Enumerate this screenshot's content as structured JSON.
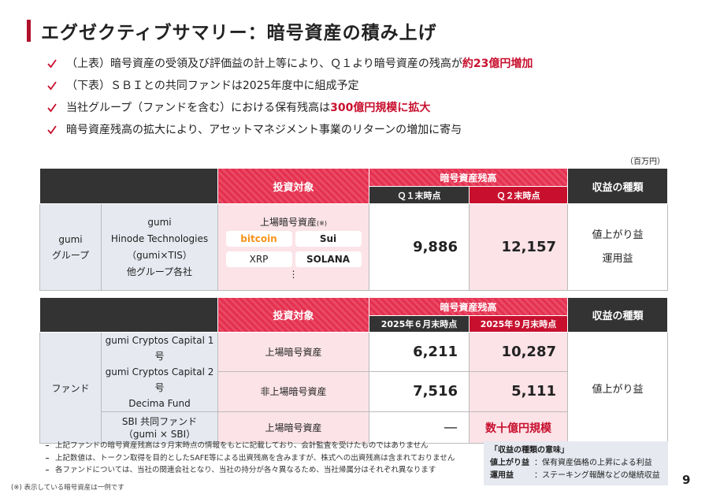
{
  "header": {
    "title": "エグゼクティブサマリー：暗号資産の積み上げ"
  },
  "bullets": [
    {
      "text": "（上表）暗号資産の受領及び評価益の計上等により、Ｑ１より暗号資産の残高が",
      "emphasis": "約23億円増加"
    },
    {
      "text": "（下表）ＳＢＩとの共同ファンドは2025年度中に組成予定"
    },
    {
      "text": "当社グループ（ファンドを含む）における保有残高は",
      "emphasis": "300億円規模に拡大"
    },
    {
      "text": "暗号資産残高の拡大により、アセットマネジメント事業のリターンの増加に寄与"
    }
  ],
  "unit": "（百万円）",
  "table1": {
    "header": {
      "target": "投資対象",
      "balance": "暗号資産残高",
      "col1": "Ｑ１末時点",
      "col2": "Ｑ２末時点",
      "revenue": "収益の種類"
    },
    "row": {
      "group": [
        "gumi",
        "グループ"
      ],
      "entities": [
        "gumi",
        "Hinode Technologies",
        "（gumi×TIS）",
        "他グループ各社"
      ],
      "asset": "上場暗号資産",
      "asset_note": "(※)",
      "logos": [
        "bitcoin",
        "Sui",
        "XRP",
        "SOLANA"
      ],
      "more": "⋮",
      "col1": "9,886",
      "col2": "12,157",
      "revenue": [
        "値上がり益",
        "運用益"
      ]
    }
  },
  "table2": {
    "header": {
      "target": "投資対象",
      "balance": "暗号資産残高",
      "col1": "2025年６月末時点",
      "col2": "2025年９月末時点",
      "revenue": "収益の種類"
    },
    "group": "ファンド",
    "entities": [
      "gumi Cryptos Capital 1号",
      "gumi Cryptos Capital 2号",
      "Decima Fund"
    ],
    "rows": [
      {
        "asset": "上場暗号資産",
        "col1": "6,211",
        "col2": "10,287"
      },
      {
        "asset": "非上場暗号資産",
        "col1": "7,516",
        "col2": "5,111"
      }
    ],
    "sbi": {
      "entity": [
        "SBI 共同ファンド",
        "（gumi × SBI）"
      ],
      "asset": "上場暗号資産",
      "col1": "—",
      "col2": "数十億円規模"
    },
    "revenue": "値上がり益"
  },
  "notes": [
    "上記ファンドの暗号資産残高は９月末時点の情報をもとに記載しており、会計監査を受けたものではありません",
    "上記数値は、トークン取得を目的としたSAFE等による出資残高を含みますが、株式への出資残高は含まれておりません",
    "各ファンドについては、当社の関連会社となり、当社の持分が各々異なるため、当社帰属分はそれぞれ異なります"
  ],
  "legend": {
    "title": "「収益の種類の意味」",
    "items": [
      {
        "term": "値上がり益",
        "desc": "：保有資産価格の上昇による利益"
      },
      {
        "term": "運用益",
        "desc": "：ステーキング報酬などの継続収益"
      }
    ]
  },
  "footnote": "(※) 表示している暗号資産は一例です",
  "page": "9"
}
